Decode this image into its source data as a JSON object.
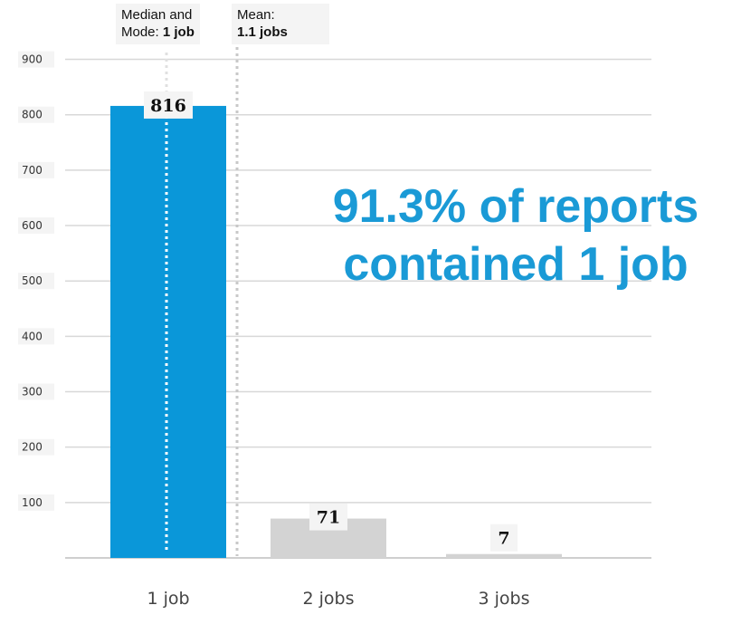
{
  "chart_data": {
    "type": "bar",
    "categories": [
      "1 job",
      "2 jobs",
      "3 jobs"
    ],
    "values": [
      816,
      71,
      7
    ],
    "bar_colors": [
      "#0a97d9",
      "#d3d3d3",
      "#d3d3d3"
    ],
    "ylim": [
      0,
      900
    ],
    "yticks": [
      100,
      200,
      300,
      400,
      500,
      600,
      700,
      800,
      900
    ],
    "grid": true,
    "xlabel": "",
    "ylabel": ""
  },
  "annotations": {
    "median_mode": {
      "line1": "Median and",
      "line2_prefix": "Mode: ",
      "line2_value": "1 job"
    },
    "mean": {
      "line1": "Mean:",
      "line2_value": "1.1 jobs"
    }
  },
  "headline": {
    "line1": "91.3% of reports",
    "line2": "contained 1 job",
    "color": "#1a9ad6"
  }
}
